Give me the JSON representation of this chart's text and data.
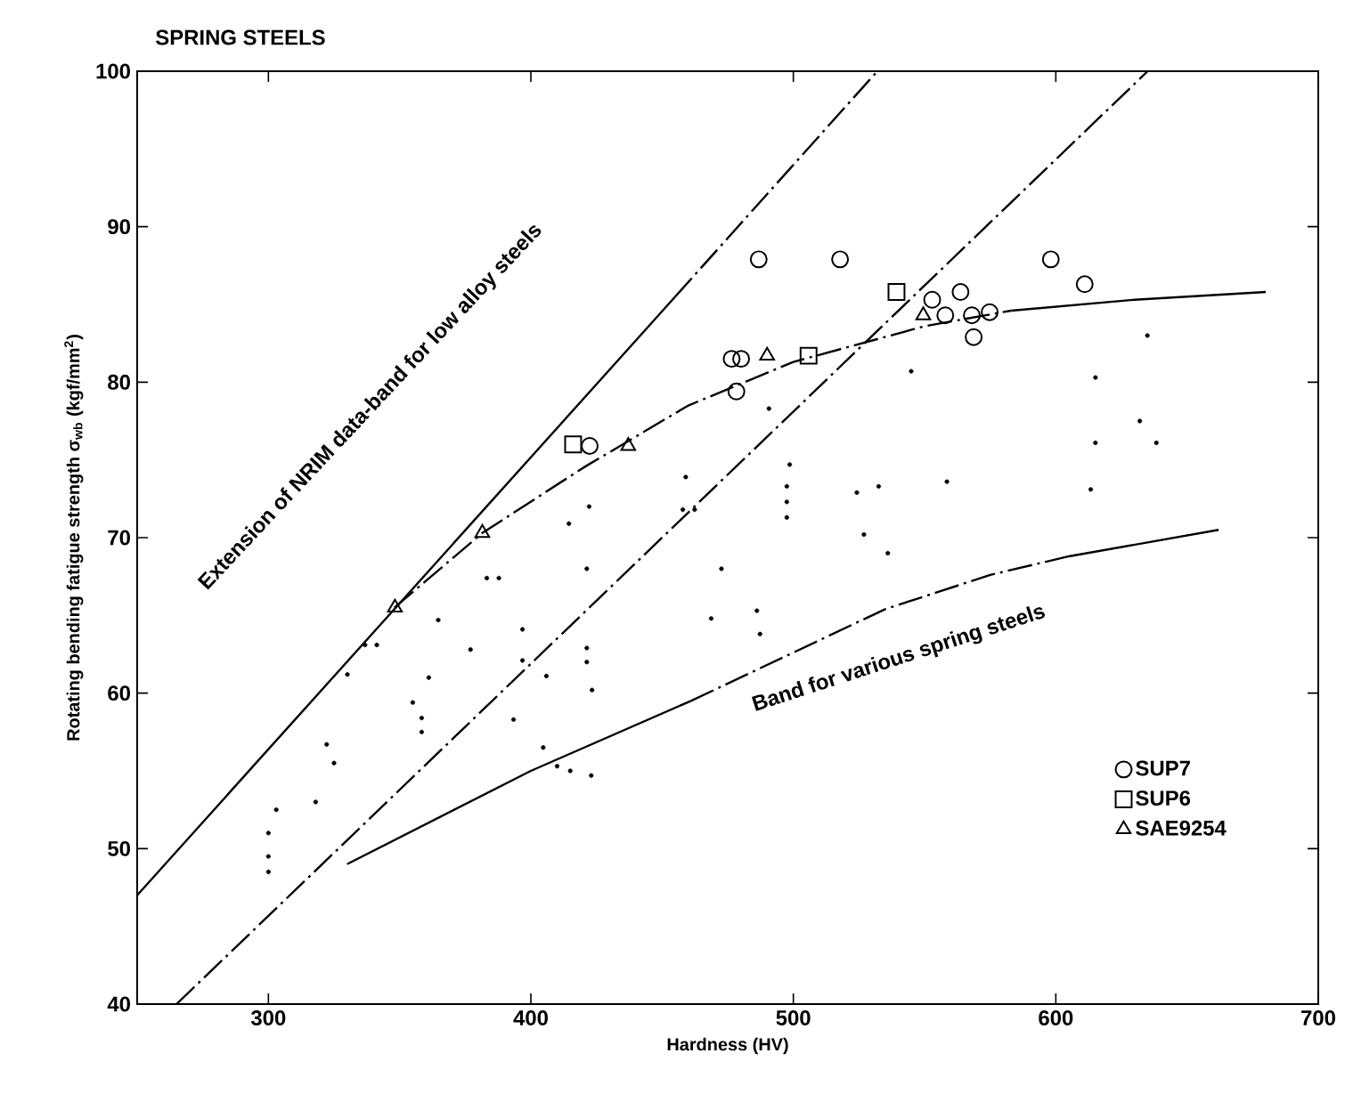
{
  "chart_data": {
    "type": "scatter",
    "title": "SPRING STEELS",
    "xlabel": "Hardness  (HV)",
    "ylabel": "Rotating bending fatigue strength  σ$_{wb}$ (kgf/mm$^{2}$)",
    "xlim": [
      250,
      700
    ],
    "ylim": [
      40,
      100
    ],
    "xticks": [
      300,
      400,
      500,
      600,
      700
    ],
    "yticks": [
      40,
      50,
      60,
      70,
      80,
      90,
      100
    ],
    "legend": "bottom right",
    "series": [
      {
        "name": "SUP7",
        "marker": "circle",
        "color": "#000000",
        "x": [
          486.8,
          517.8,
          598.1,
          611,
          552.9,
          563.7,
          557.9,
          568.0,
          574.8,
          568.7,
          480.1,
          478.3,
          422.4,
          476.5
        ],
        "values": [
          87.9,
          87.9,
          87.9,
          86.3,
          85.3,
          85.8,
          84.3,
          84.3,
          84.5,
          82.9,
          81.5,
          79.4,
          75.9,
          81.5
        ]
      },
      {
        "name": "SUP6",
        "marker": "square",
        "color": "#000000",
        "x": [
          416.1,
          505.8,
          539.3
        ],
        "values": [
          76.0,
          81.7,
          85.8
        ]
      },
      {
        "name": "SAE9254",
        "marker": "triangle",
        "color": "#000000",
        "x": [
          437.1,
          381.5,
          348.2,
          490.0,
          549.5
        ],
        "values": [
          75.9,
          70.3,
          65.5,
          81.7,
          84.3
        ]
      },
      {
        "marker": "circle",
        "color": "#000000",
        "x": [
          459.0,
          457.9,
          462.4,
          414.5,
          422.2,
          472.6,
          421.3,
          383.2,
          387.8,
          468.7,
          364.7,
          396.8,
          377.0,
          421.3,
          421.3,
          396.8,
          361.1,
          405.9,
          330.1,
          341.3,
          336.8,
          423.3,
          355.0,
          358.4,
          358.4,
          393.4,
          322.2,
          404.7,
          544.9,
          634.9,
          615.1,
          632.0,
          638.3,
          615.1,
          613.3,
          558.5,
          524.2,
          532.5,
          526.9,
          536.0,
          498.6,
          497.5,
          497.5,
          497.5,
          490.7,
          486.1,
          487.3,
          300,
          300,
          300,
          303,
          318,
          325,
          410,
          415,
          423
        ],
        "values": [
          73.9,
          71.8,
          71.8,
          70.9,
          72.0,
          68.0,
          68.0,
          67.4,
          67.4,
          64.8,
          64.7,
          64.1,
          62.8,
          62.9,
          62.0,
          62.1,
          61.0,
          61.1,
          61.2,
          63.1,
          63.1,
          60.2,
          59.4,
          58.4,
          57.5,
          58.3,
          56.7,
          56.5,
          80.7,
          83.0,
          80.3,
          77.5,
          76.1,
          76.1,
          73.1,
          73.6,
          72.9,
          73.3,
          70.2,
          69.0,
          74.7,
          73.3,
          72.3,
          71.3,
          78.3,
          65.3,
          63.8,
          51,
          49.5,
          48.5,
          52.5,
          53,
          55.5,
          55.3,
          55,
          54.7
        ]
      },
      {
        "type": "line",
        "line_style": "solid",
        "color": "#000000",
        "x": [
          250,
          455
        ],
        "values": [
          47,
          85.5
        ]
      },
      {
        "type": "line",
        "line_style": "dashdot",
        "color": "#000000",
        "x": [
          455,
          532
        ],
        "values": [
          85.5,
          100
        ]
      },
      {
        "type": "line",
        "line_style": "dashdot",
        "color": "#000000",
        "x": [
          265,
          635
        ],
        "values": [
          40,
          100
        ]
      },
      {
        "type": "line",
        "line_style": "dashdot",
        "color": "#000000",
        "x": [
          348,
          381.5,
          420,
          460,
          500,
          550,
          583
        ],
        "values": [
          65.5,
          70.3,
          74.5,
          78.5,
          81.3,
          83.6,
          84.6
        ]
      },
      {
        "type": "line",
        "line_style": "solid",
        "color": "#000000",
        "x": [
          583,
          630,
          680
        ],
        "values": [
          84.6,
          85.3,
          85.8
        ]
      },
      {
        "type": "line",
        "line_style": "solid",
        "color": "#000000",
        "x": [
          330,
          400,
          461
        ],
        "values": [
          49,
          55,
          59.5
        ]
      },
      {
        "type": "line",
        "line_style": "dashdot",
        "color": "#000000",
        "x": [
          461,
          535,
          575,
          605
        ],
        "values": [
          59.5,
          65.4,
          67.6,
          68.8
        ]
      },
      {
        "type": "line",
        "line_style": "solid",
        "color": "#000000",
        "x": [
          605,
          662
        ],
        "values": [
          68.8,
          70.5
        ]
      }
    ],
    "annotations": [
      "Extension of NRIM data-band for low alloy steels",
      "Band for various spring steels"
    ]
  }
}
